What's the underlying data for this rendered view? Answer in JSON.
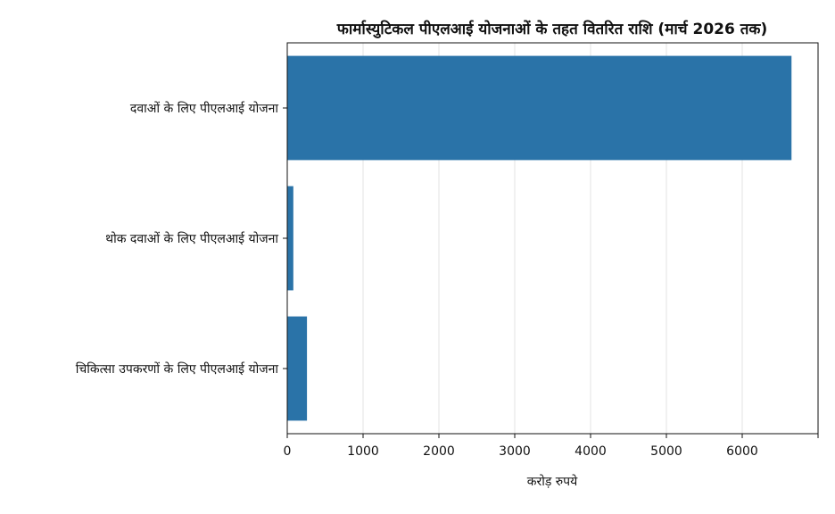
{
  "chart_data": {
    "type": "bar",
    "orientation": "horizontal",
    "title": "फार्मास्युटिकल पीएलआई योजनाओं के तहत वितरित राशि (मार्च 2026 तक)",
    "xlabel": "करोड़ रुपये",
    "ylabel": "",
    "categories": [
      "दवाओं के लिए पीएलआई योजना",
      "थोक दवाओं के लिए पीएलआई योजना",
      "चिकित्सा उपकरणों के लिए पीएलआई योजना"
    ],
    "values": [
      6650,
      80,
      260
    ],
    "xlim": [
      0,
      7000
    ],
    "xticks": [
      0,
      1000,
      2000,
      3000,
      4000,
      5000,
      6000
    ],
    "xtick_labels": [
      "0",
      "1000",
      "2000",
      "3000",
      "4000",
      "5000",
      "6000"
    ],
    "grid": "x-axis vertical gridlines",
    "legend": "none",
    "bar_color": "#2a73a8"
  }
}
